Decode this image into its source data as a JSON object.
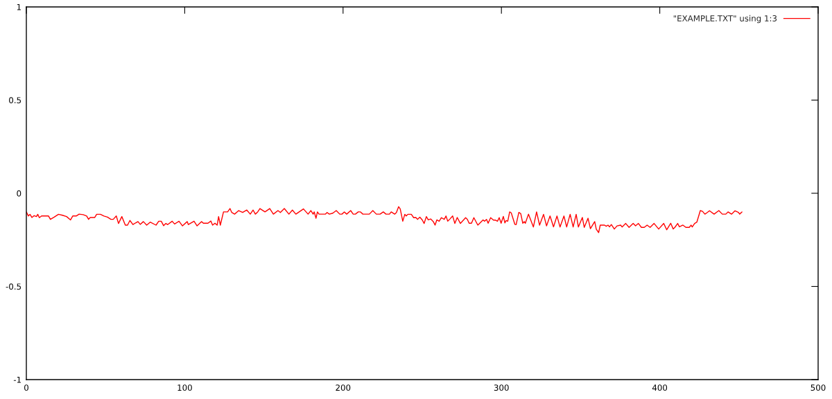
{
  "chart_data": {
    "type": "line",
    "x": [
      0,
      1.3,
      2.3,
      3.5,
      4.9,
      6.4,
      7.2,
      8.2,
      9.6,
      14,
      15.2,
      17.6,
      20.3,
      22.8,
      25.4,
      27.9,
      29.3,
      31.5,
      33.3,
      35.9,
      38.1,
      39.3,
      40.3,
      43.2,
      44.4,
      46.8,
      49,
      51.2,
      53.4,
      54.9,
      56.8,
      58.2,
      60.3,
      62.5,
      63.9,
      65.4,
      67.3,
      69,
      70.5,
      71.9,
      73.9,
      76,
      78.2,
      81.9,
      83.6,
      85.2,
      86.7,
      88.1,
      89.2,
      92.1,
      93.6,
      96.4,
      98.6,
      101.6,
      102.3,
      105.9,
      107.8,
      110.6,
      111.8,
      114.7,
      116.5,
      117.6,
      119.1,
      120.5,
      121.4,
      122.5,
      124.5,
      127.1,
      128.6,
      129.7,
      131.5,
      134.1,
      136.6,
      139.2,
      141.4,
      143.2,
      144.6,
      146.1,
      147.5,
      150.7,
      153.7,
      156,
      158.9,
      160.4,
      162.9,
      165.8,
      168,
      170.2,
      175,
      177.9,
      179.7,
      181.1,
      181.8,
      182.9,
      183.8,
      184.8,
      188.8,
      189.9,
      191.3,
      193.5,
      195.7,
      197.9,
      199.3,
      200.8,
      202.3,
      204.8,
      206.4,
      207.8,
      209.6,
      211,
      212.5,
      216.6,
      218.8,
      221,
      223.4,
      225.4,
      227.1,
      229.3,
      230.4,
      232.6,
      233.7,
      235.1,
      236.1,
      237.7,
      239,
      239.9,
      240.9,
      243.1,
      244.6,
      246,
      247,
      248.5,
      250,
      251.2,
      252.6,
      253.8,
      255.3,
      257,
      258.1,
      259.2,
      260.7,
      262.1,
      263.9,
      265,
      266.1,
      267.5,
      269.2,
      270.6,
      272.1,
      274.1,
      277.4,
      278.5,
      279.6,
      281.1,
      282.6,
      285.1,
      288.4,
      289.4,
      290.6,
      291.6,
      293.2,
      295,
      296.1,
      297.5,
      298.6,
      299.8,
      301.2,
      302.2,
      303,
      304,
      305.2,
      306.2,
      308.5,
      309.3,
      311,
      312.2,
      313.5,
      314.4,
      315.1,
      317.1,
      320.2,
      322.2,
      324.1,
      326.6,
      328.5,
      330.7,
      332.9,
      335.1,
      337,
      339.5,
      341.2,
      343.4,
      345.3,
      347.2,
      348.6,
      351.1,
      352.3,
      354.7,
      356.2,
      358.9,
      359.9,
      361.4,
      362.4,
      365.1,
      366.2,
      367.3,
      368.3,
      369.4,
      371.3,
      373,
      375.3,
      376.2,
      378.5,
      380.6,
      383.2,
      384.7,
      386.5,
      388.4,
      390.2,
      392,
      393.9,
      396.4,
      399.3,
      402.5,
      404.4,
      406.9,
      408.5,
      409.5,
      411.3,
      412.4,
      414.6,
      416.5,
      418.6,
      419.8,
      420.5,
      422,
      423.4,
      425.6,
      427,
      428.5,
      430,
      431.4,
      434.3,
      437.3,
      439.5,
      441.7,
      443.1,
      445.3,
      447.5,
      449.7,
      450.4,
      451.9
    ],
    "series": [
      {
        "name": "\"EXAMPLE.TXT\" using 1:3",
        "color": "#ff0000",
        "values": [
          -0.1,
          -0.122,
          -0.113,
          -0.13,
          -0.12,
          -0.125,
          -0.113,
          -0.131,
          -0.122,
          -0.122,
          -0.14,
          -0.128,
          -0.113,
          -0.118,
          -0.125,
          -0.143,
          -0.122,
          -0.122,
          -0.112,
          -0.115,
          -0.122,
          -0.14,
          -0.13,
          -0.13,
          -0.113,
          -0.113,
          -0.122,
          -0.128,
          -0.14,
          -0.14,
          -0.122,
          -0.162,
          -0.125,
          -0.171,
          -0.171,
          -0.146,
          -0.168,
          -0.159,
          -0.152,
          -0.167,
          -0.152,
          -0.171,
          -0.155,
          -0.171,
          -0.15,
          -0.15,
          -0.174,
          -0.162,
          -0.168,
          -0.15,
          -0.165,
          -0.15,
          -0.175,
          -0.152,
          -0.168,
          -0.15,
          -0.175,
          -0.152,
          -0.161,
          -0.161,
          -0.149,
          -0.171,
          -0.161,
          -0.171,
          -0.125,
          -0.171,
          -0.1,
          -0.1,
          -0.082,
          -0.103,
          -0.112,
          -0.093,
          -0.103,
          -0.09,
          -0.112,
          -0.09,
          -0.112,
          -0.1,
          -0.082,
          -0.1,
          -0.082,
          -0.112,
          -0.093,
          -0.103,
          -0.082,
          -0.112,
          -0.09,
          -0.112,
          -0.084,
          -0.112,
          -0.093,
          -0.112,
          -0.1,
          -0.134,
          -0.1,
          -0.112,
          -0.112,
          -0.103,
          -0.112,
          -0.107,
          -0.093,
          -0.112,
          -0.112,
          -0.1,
          -0.112,
          -0.093,
          -0.112,
          -0.112,
          -0.1,
          -0.1,
          -0.112,
          -0.112,
          -0.093,
          -0.112,
          -0.112,
          -0.1,
          -0.112,
          -0.112,
          -0.1,
          -0.112,
          -0.103,
          -0.072,
          -0.084,
          -0.15,
          -0.113,
          -0.122,
          -0.113,
          -0.113,
          -0.131,
          -0.13,
          -0.14,
          -0.128,
          -0.143,
          -0.162,
          -0.125,
          -0.143,
          -0.138,
          -0.152,
          -0.171,
          -0.143,
          -0.15,
          -0.131,
          -0.14,
          -0.122,
          -0.15,
          -0.138,
          -0.122,
          -0.162,
          -0.13,
          -0.162,
          -0.131,
          -0.14,
          -0.161,
          -0.161,
          -0.131,
          -0.171,
          -0.143,
          -0.15,
          -0.14,
          -0.161,
          -0.131,
          -0.144,
          -0.144,
          -0.15,
          -0.131,
          -0.161,
          -0.124,
          -0.159,
          -0.146,
          -0.15,
          -0.1,
          -0.105,
          -0.167,
          -0.168,
          -0.103,
          -0.109,
          -0.161,
          -0.152,
          -0.161,
          -0.112,
          -0.181,
          -0.1,
          -0.171,
          -0.113,
          -0.175,
          -0.122,
          -0.18,
          -0.122,
          -0.181,
          -0.122,
          -0.181,
          -0.113,
          -0.181,
          -0.113,
          -0.181,
          -0.13,
          -0.183,
          -0.134,
          -0.19,
          -0.152,
          -0.193,
          -0.211,
          -0.171,
          -0.171,
          -0.177,
          -0.171,
          -0.18,
          -0.168,
          -0.192,
          -0.175,
          -0.171,
          -0.181,
          -0.162,
          -0.183,
          -0.162,
          -0.175,
          -0.162,
          -0.183,
          -0.183,
          -0.171,
          -0.183,
          -0.162,
          -0.192,
          -0.162,
          -0.196,
          -0.161,
          -0.192,
          -0.183,
          -0.162,
          -0.18,
          -0.171,
          -0.183,
          -0.183,
          -0.171,
          -0.181,
          -0.162,
          -0.155,
          -0.093,
          -0.097,
          -0.112,
          -0.103,
          -0.094,
          -0.112,
          -0.093,
          -0.112,
          -0.112,
          -0.1,
          -0.112,
          -0.094,
          -0.103,
          -0.112,
          -0.1
        ]
      }
    ],
    "xlim": [
      0,
      500
    ],
    "ylim": [
      -1,
      1
    ],
    "xticks": [
      0,
      100,
      200,
      300,
      400,
      500
    ],
    "yticks": [
      -1,
      -0.5,
      0,
      0.5,
      1
    ],
    "legend": "top right",
    "grid": false,
    "line_style": "solid",
    "marker": "none"
  }
}
